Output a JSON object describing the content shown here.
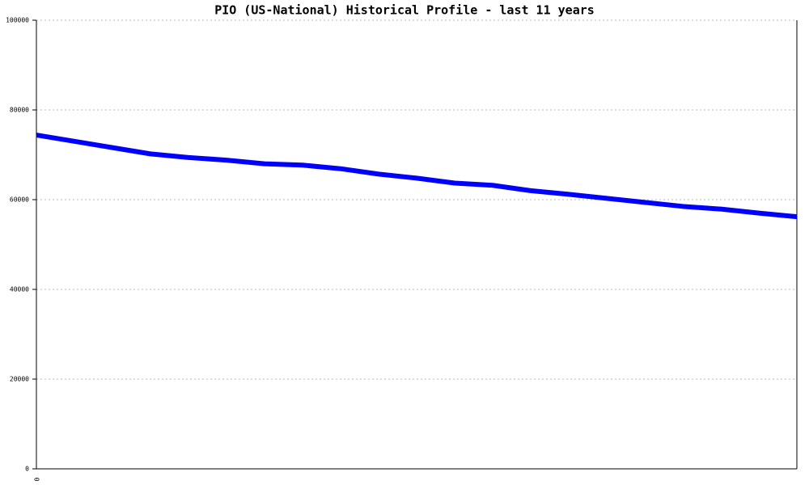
{
  "chart_data": {
    "type": "line",
    "title": "PIO (US-National) Historical Profile - last 11 years",
    "categories": [
      "0",
      null,
      null,
      null,
      null,
      null,
      null,
      null,
      null,
      null,
      null,
      null,
      null,
      null,
      null,
      null,
      null,
      null,
      null,
      null,
      null
    ],
    "series": [
      {
        "color": "#0000ff",
        "values": [
          74400,
          73000,
          71600,
          70200,
          69400,
          68800,
          68000,
          67700,
          66900,
          65700,
          64800,
          63700,
          63200,
          62000,
          61200,
          60300,
          59400,
          58500,
          57900,
          57000,
          56200
        ]
      }
    ],
    "ylim": [
      0,
      100000
    ],
    "yticks": [
      0,
      20000,
      40000,
      60000,
      80000,
      100000
    ],
    "grid": true
  }
}
